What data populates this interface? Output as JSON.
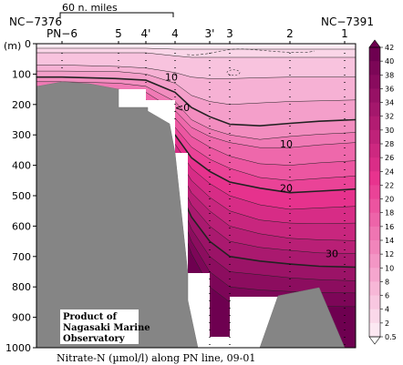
{
  "chart_data": {
    "type": "heatmap",
    "title": "Nitrate-N (µmol/l) along PN line, 09-01",
    "ylabel": "(m)",
    "ylim": [
      0,
      1000
    ],
    "y_ticks": [
      0,
      100,
      200,
      300,
      400,
      500,
      600,
      700,
      800,
      900,
      1000
    ],
    "y_tick_labels": [
      "0",
      "100",
      "200",
      "300",
      "400",
      "500",
      "600",
      "700",
      "800",
      "900",
      "1000"
    ],
    "stations": [
      "PN−6",
      "5",
      "4'",
      "4",
      "3'",
      "3",
      "2",
      "1"
    ],
    "station_left_id": "NC−7376",
    "station_right_id": "NC−7391",
    "scale_bar_label": "60 n. miles",
    "contour_labels": [
      {
        "text": "10",
        "depth": 110
      },
      {
        "text": "<0",
        "depth": 210
      },
      {
        "text": "10",
        "depth": 330
      },
      {
        "text": "20",
        "depth": 475
      },
      {
        "text": "30",
        "depth": 690
      }
    ],
    "colorbar": {
      "levels": [
        0.5,
        2,
        4,
        6,
        8,
        10,
        12,
        14,
        16,
        18,
        20,
        22,
        24,
        26,
        28,
        30,
        32,
        34,
        36,
        38,
        40,
        42
      ],
      "labels": [
        "0.5",
        "2",
        "4",
        "6",
        "8",
        "10",
        "12",
        "14",
        "16",
        "18",
        "20",
        "22",
        "24",
        "26",
        "28",
        "30",
        "32",
        "34",
        "36",
        "38",
        "40",
        "42"
      ],
      "color_low": "#ffffff",
      "color_high": "#6e0050"
    },
    "credit_lines": [
      "Product of",
      "Nagasaki Marine",
      "Observatory"
    ]
  }
}
